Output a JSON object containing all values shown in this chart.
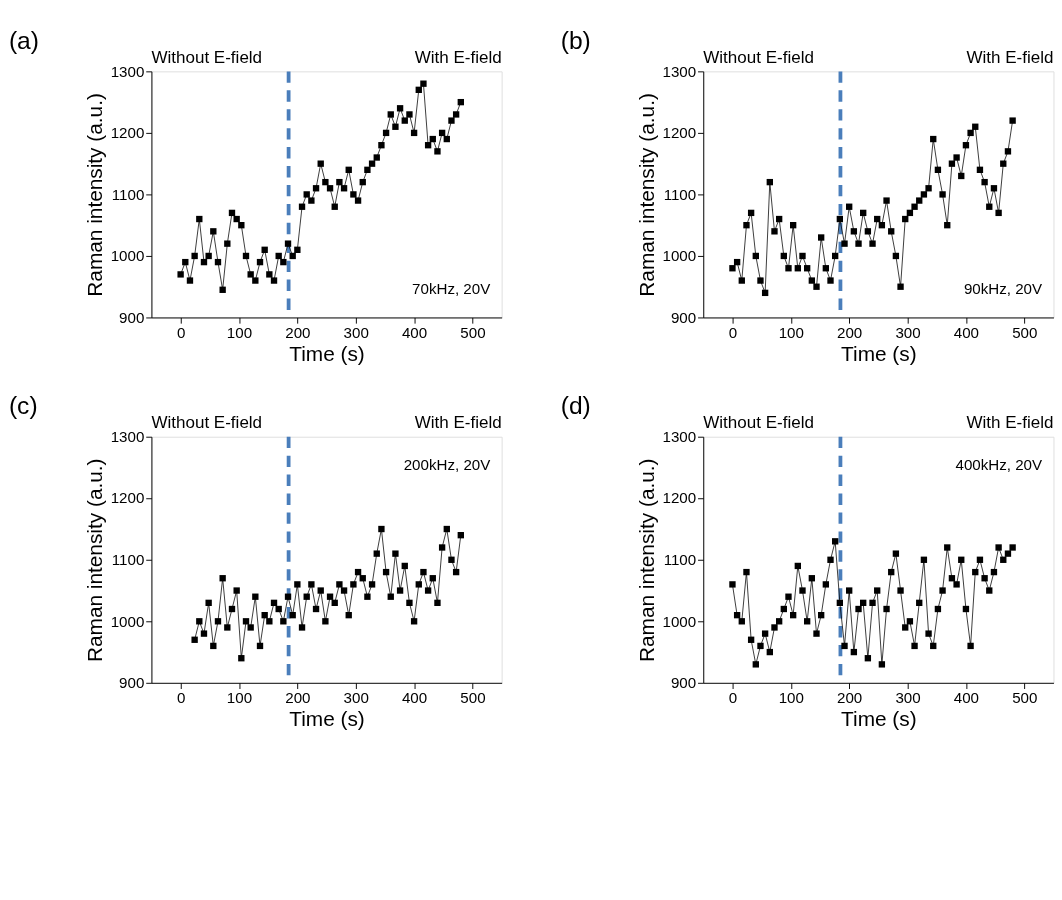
{
  "chart_data": [
    {
      "type": "line",
      "title": "(a)",
      "xlabel": "Time (s)",
      "ylabel": "Raman intensity (a.u.)",
      "xlim": [
        -50,
        550
      ],
      "xticks": [
        0,
        100,
        200,
        300,
        400,
        500
      ],
      "ylim": [
        900,
        1300
      ],
      "yticks": [
        900,
        1000,
        1100,
        1200,
        1300
      ],
      "grid": false,
      "marker": "square",
      "line_style": "solid",
      "annotations": [
        "Without E-field",
        "With E-field",
        "70kHz, 20V"
      ],
      "ref_lines": [
        {
          "axis": "x",
          "value": 185,
          "color": "#4a7ebb",
          "line_style": "dashed"
        }
      ],
      "series": [
        {
          "color": "#000000",
          "x": [
            0,
            8,
            16,
            24,
            32,
            40,
            48,
            56,
            64,
            72,
            80,
            88,
            96,
            104,
            112,
            120,
            128,
            136,
            144,
            152,
            160,
            168,
            176,
            184,
            192,
            200,
            208,
            216,
            224,
            232,
            240,
            248,
            256,
            264,
            272,
            280,
            288,
            296,
            304,
            312,
            320,
            328,
            336,
            344,
            352,
            360,
            368,
            376,
            384,
            392,
            400,
            408,
            416,
            424,
            432,
            440,
            448,
            456,
            464,
            472,
            480
          ],
          "values": [
            970,
            990,
            960,
            1000,
            1060,
            990,
            1000,
            1040,
            990,
            945,
            1020,
            1070,
            1060,
            1050,
            1000,
            970,
            960,
            990,
            1010,
            970,
            960,
            1000,
            990,
            1020,
            1000,
            1010,
            1080,
            1100,
            1090,
            1110,
            1150,
            1120,
            1110,
            1080,
            1120,
            1110,
            1140,
            1100,
            1090,
            1120,
            1140,
            1150,
            1160,
            1180,
            1200,
            1230,
            1210,
            1240,
            1220,
            1230,
            1200,
            1270,
            1280,
            1180,
            1190,
            1170,
            1200,
            1190,
            1220,
            1230,
            1250
          ]
        }
      ]
    },
    {
      "type": "line",
      "title": "(b)",
      "xlabel": "Time (s)",
      "ylabel": "Raman intensity (a.u.)",
      "xlim": [
        -50,
        550
      ],
      "xticks": [
        0,
        100,
        200,
        300,
        400,
        500
      ],
      "ylim": [
        900,
        1300
      ],
      "yticks": [
        900,
        1000,
        1100,
        1200,
        1300
      ],
      "grid": false,
      "marker": "square",
      "line_style": "solid",
      "annotations": [
        "Without E-field",
        "With E-field",
        "90kHz, 20V"
      ],
      "ref_lines": [
        {
          "axis": "x",
          "value": 185,
          "color": "#4a7ebb",
          "line_style": "dashed"
        }
      ],
      "series": [
        {
          "color": "#000000",
          "x": [
            0,
            8,
            16,
            24,
            32,
            40,
            48,
            56,
            64,
            72,
            80,
            88,
            96,
            104,
            112,
            120,
            128,
            136,
            144,
            152,
            160,
            168,
            176,
            184,
            192,
            200,
            208,
            216,
            224,
            232,
            240,
            248,
            256,
            264,
            272,
            280,
            288,
            296,
            304,
            312,
            320,
            328,
            336,
            344,
            352,
            360,
            368,
            376,
            384,
            392,
            400,
            408,
            416,
            424,
            432,
            440,
            448,
            456,
            464,
            472,
            480
          ],
          "values": [
            980,
            990,
            960,
            1050,
            1070,
            1000,
            960,
            940,
            1120,
            1040,
            1060,
            1000,
            980,
            1050,
            980,
            1000,
            980,
            960,
            950,
            1030,
            980,
            960,
            1000,
            1060,
            1020,
            1080,
            1040,
            1020,
            1070,
            1040,
            1020,
            1060,
            1050,
            1090,
            1040,
            1000,
            950,
            1060,
            1070,
            1080,
            1090,
            1100,
            1110,
            1190,
            1140,
            1100,
            1050,
            1150,
            1160,
            1130,
            1180,
            1200,
            1210,
            1140,
            1120,
            1080,
            1110,
            1070,
            1150,
            1170,
            1220
          ]
        }
      ]
    },
    {
      "type": "line",
      "title": "(c)",
      "xlabel": "Time (s)",
      "ylabel": "Raman intensity (a.u.)",
      "xlim": [
        -50,
        550
      ],
      "xticks": [
        0,
        100,
        200,
        300,
        400,
        500
      ],
      "ylim": [
        900,
        1300
      ],
      "yticks": [
        900,
        1000,
        1100,
        1200,
        1300
      ],
      "grid": false,
      "marker": "square",
      "line_style": "solid",
      "annotations": [
        "Without E-field",
        "With E-field",
        "200kHz, 20V"
      ],
      "ref_lines": [
        {
          "axis": "x",
          "value": 185,
          "color": "#4a7ebb",
          "line_style": "dashed"
        }
      ],
      "series": [
        {
          "color": "#000000",
          "x": [
            24,
            32,
            40,
            48,
            56,
            64,
            72,
            80,
            88,
            96,
            104,
            112,
            120,
            128,
            136,
            144,
            152,
            160,
            168,
            176,
            184,
            192,
            200,
            208,
            216,
            224,
            232,
            240,
            248,
            256,
            264,
            272,
            280,
            288,
            296,
            304,
            312,
            320,
            328,
            336,
            344,
            352,
            360,
            368,
            376,
            384,
            392,
            400,
            408,
            416,
            424,
            432,
            440,
            448,
            456,
            464,
            472,
            480
          ],
          "values": [
            970,
            1000,
            980,
            1030,
            960,
            1000,
            1070,
            990,
            1020,
            1050,
            940,
            1000,
            990,
            1040,
            960,
            1010,
            1000,
            1030,
            1020,
            1000,
            1040,
            1010,
            1060,
            990,
            1040,
            1060,
            1020,
            1050,
            1000,
            1040,
            1030,
            1060,
            1050,
            1010,
            1060,
            1080,
            1070,
            1040,
            1060,
            1110,
            1150,
            1080,
            1040,
            1110,
            1050,
            1090,
            1030,
            1000,
            1060,
            1080,
            1050,
            1070,
            1030,
            1120,
            1150,
            1100,
            1080,
            1140
          ]
        }
      ]
    },
    {
      "type": "line",
      "title": "(d)",
      "xlabel": "Time (s)",
      "ylabel": "Raman intensity (a.u.)",
      "xlim": [
        -50,
        550
      ],
      "xticks": [
        0,
        100,
        200,
        300,
        400,
        500
      ],
      "ylim": [
        900,
        1300
      ],
      "yticks": [
        900,
        1000,
        1100,
        1200,
        1300
      ],
      "grid": false,
      "marker": "square",
      "line_style": "solid",
      "annotations": [
        "Without E-field",
        "With E-field",
        "400kHz, 20V"
      ],
      "ref_lines": [
        {
          "axis": "x",
          "value": 185,
          "color": "#4a7ebb",
          "line_style": "dashed"
        }
      ],
      "series": [
        {
          "color": "#000000",
          "x": [
            0,
            8,
            16,
            24,
            32,
            40,
            48,
            56,
            64,
            72,
            80,
            88,
            96,
            104,
            112,
            120,
            128,
            136,
            144,
            152,
            160,
            168,
            176,
            184,
            192,
            200,
            208,
            216,
            224,
            232,
            240,
            248,
            256,
            264,
            272,
            280,
            288,
            296,
            304,
            312,
            320,
            328,
            336,
            344,
            352,
            360,
            368,
            376,
            384,
            392,
            400,
            408,
            416,
            424,
            432,
            440,
            448,
            456,
            464,
            472,
            480
          ],
          "values": [
            1060,
            1010,
            1000,
            1080,
            970,
            930,
            960,
            980,
            950,
            990,
            1000,
            1020,
            1040,
            1010,
            1090,
            1050,
            1000,
            1070,
            980,
            1010,
            1060,
            1100,
            1130,
            1030,
            960,
            1050,
            950,
            1020,
            1030,
            940,
            1030,
            1050,
            930,
            1020,
            1080,
            1110,
            1050,
            990,
            1000,
            960,
            1030,
            1100,
            980,
            960,
            1020,
            1050,
            1120,
            1070,
            1060,
            1100,
            1020,
            960,
            1080,
            1100,
            1070,
            1050,
            1080,
            1120,
            1100,
            1110,
            1120
          ]
        }
      ]
    }
  ]
}
